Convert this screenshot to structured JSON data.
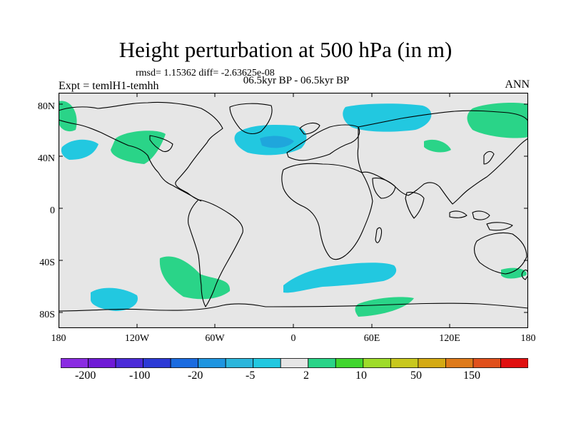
{
  "header": {
    "title": "Height perturbation at 500 hPa (in m)",
    "stats": "rmsd= 1.15362 diff= -2.63625e-08",
    "periods": "06.5kyr BP - 06.5kyr BP",
    "experiment": "Expt = temlH1-temhh",
    "season": "ANN"
  },
  "axes": {
    "y_ticks": [
      "80N",
      "40N",
      "0",
      "40S",
      "80S"
    ],
    "x_ticks": [
      "180",
      "120W",
      "60W",
      "0",
      "60E",
      "120E",
      "180"
    ]
  },
  "colorbar": {
    "colors": [
      "#8a2be2",
      "#6f1ad6",
      "#4b2bd8",
      "#2c3ad6",
      "#1a6be0",
      "#1f95e0",
      "#2cb6dc",
      "#22c8e0",
      "#e6e6e6",
      "#2ad488",
      "#41d62e",
      "#9edc2a",
      "#c8c81e",
      "#d4aa14",
      "#de7a1a",
      "#e0501c",
      "#e01010"
    ],
    "labels": [
      "-200",
      "-100",
      "-20",
      "-5",
      "2",
      "10",
      "50",
      "150"
    ]
  },
  "map": {
    "background": "#e6e6e6",
    "positive_color": "#2ad488",
    "negative_color": "#22c8e0",
    "negative_strong_color": "#1fa6dc"
  }
}
